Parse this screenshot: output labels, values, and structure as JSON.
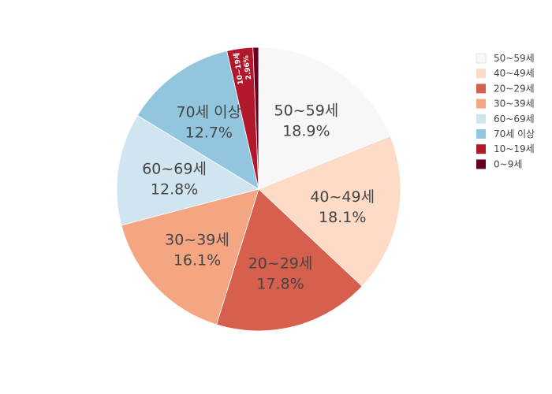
{
  "chart_data": {
    "type": "pie",
    "title": "",
    "sort": "descending",
    "direction": "clockwise",
    "legend_position": "right",
    "slices": [
      {
        "label": "50~59세",
        "percent_text": "18.9%",
        "value": 18.9,
        "color": "#f7f7f7",
        "text_color": "#444444"
      },
      {
        "label": "40~49세",
        "percent_text": "18.1%",
        "value": 18.1,
        "color": "#fddbc7",
        "text_color": "#444444"
      },
      {
        "label": "20~29세",
        "percent_text": "17.8%",
        "value": 17.8,
        "color": "#d6604d",
        "text_color": "#444444"
      },
      {
        "label": "30~39세",
        "percent_text": "16.1%",
        "value": 16.1,
        "color": "#f4a582",
        "text_color": "#444444"
      },
      {
        "label": "60~69세",
        "percent_text": "12.8%",
        "value": 12.8,
        "color": "#d1e5f0",
        "text_color": "#444444"
      },
      {
        "label": "70세 이상",
        "percent_text": "12.7%",
        "value": 12.7,
        "color": "#92c5de",
        "text_color": "#444444"
      },
      {
        "label": "10~19세",
        "percent_text": "2.96%",
        "value": 2.96,
        "color": "#b2182b",
        "text_color": "#ffffff"
      },
      {
        "label": "0~9세",
        "percent_text": "",
        "value": 0.64,
        "color": "#67001f",
        "text_color": "#ffffff"
      }
    ]
  }
}
